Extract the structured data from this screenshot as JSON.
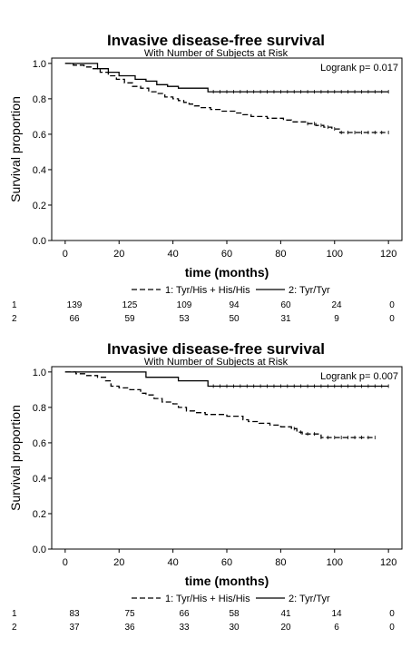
{
  "chart_data": [
    {
      "type": "line",
      "title": "Invasive disease-free survival",
      "subtitle": "With Number of Subjects at Risk",
      "xlabel": "time (months)",
      "ylabel": "Survival proportion",
      "xlim": [
        -5,
        125
      ],
      "ylim": [
        0,
        1.03
      ],
      "xticks": [
        0,
        20,
        40,
        60,
        80,
        100,
        120
      ],
      "yticks": [
        0.0,
        0.2,
        0.4,
        0.6,
        0.8,
        1.0
      ],
      "annotation": "Logrank p= 0.017",
      "legend_placement": "bottom",
      "series": [
        {
          "name": "1: Tyr/His + His/His",
          "style": "dashed",
          "x": [
            0,
            3,
            7,
            10,
            13,
            16,
            19,
            22,
            25,
            28,
            31,
            34,
            37,
            40,
            42,
            44,
            46,
            48,
            50,
            52,
            54,
            56,
            58,
            60,
            63,
            66,
            69,
            72,
            75,
            78,
            81,
            84,
            87,
            90,
            93,
            96,
            99,
            102,
            105,
            110,
            115,
            120
          ],
          "y": [
            1.0,
            0.99,
            0.98,
            0.97,
            0.95,
            0.93,
            0.91,
            0.89,
            0.87,
            0.86,
            0.84,
            0.83,
            0.81,
            0.8,
            0.79,
            0.78,
            0.77,
            0.76,
            0.75,
            0.75,
            0.74,
            0.74,
            0.73,
            0.73,
            0.72,
            0.71,
            0.7,
            0.7,
            0.69,
            0.69,
            0.68,
            0.67,
            0.67,
            0.66,
            0.65,
            0.64,
            0.63,
            0.61,
            0.61,
            0.61,
            0.61,
            0.61
          ]
        },
        {
          "name": "2: Tyr/Tyr",
          "style": "solid",
          "x": [
            0,
            10,
            12,
            16,
            20,
            26,
            30,
            34,
            38,
            42,
            46,
            50,
            53,
            60,
            70,
            80,
            90,
            100,
            110,
            120
          ],
          "y": [
            1.0,
            1.0,
            0.97,
            0.95,
            0.93,
            0.91,
            0.9,
            0.88,
            0.87,
            0.86,
            0.86,
            0.86,
            0.84,
            0.84,
            0.84,
            0.84,
            0.84,
            0.84,
            0.84,
            0.84
          ]
        }
      ],
      "risk_table": {
        "times": [
          0,
          20,
          40,
          60,
          80,
          100,
          120
        ],
        "rows": [
          {
            "label": "1",
            "counts": [
              "139",
              "125",
              "109",
              "94",
              "60",
              "24",
              "0"
            ]
          },
          {
            "label": "2",
            "counts": [
              "66",
              "59",
              "53",
              "50",
              "31",
              "9",
              "0"
            ]
          }
        ]
      }
    },
    {
      "type": "line",
      "title": "Invasive disease-free survival",
      "subtitle": "With Number of Subjects at Risk",
      "xlabel": "time (months)",
      "ylabel": "Survival proportion",
      "xlim": [
        -5,
        125
      ],
      "ylim": [
        0,
        1.03
      ],
      "xticks": [
        0,
        20,
        40,
        60,
        80,
        100,
        120
      ],
      "yticks": [
        0.0,
        0.2,
        0.4,
        0.6,
        0.8,
        1.0
      ],
      "annotation": "Logrank p= 0.007",
      "legend_placement": "bottom",
      "series": [
        {
          "name": "1: Tyr/His + His/His",
          "style": "dashed",
          "x": [
            0,
            4,
            8,
            12,
            15,
            17,
            20,
            24,
            28,
            30,
            33,
            36,
            40,
            42,
            45,
            48,
            52,
            56,
            60,
            64,
            66,
            68,
            72,
            76,
            80,
            84,
            86,
            88,
            92,
            95,
            100,
            105,
            110,
            115
          ],
          "y": [
            1.0,
            0.99,
            0.98,
            0.97,
            0.95,
            0.92,
            0.91,
            0.9,
            0.88,
            0.87,
            0.85,
            0.83,
            0.82,
            0.8,
            0.78,
            0.77,
            0.76,
            0.76,
            0.75,
            0.75,
            0.73,
            0.72,
            0.71,
            0.7,
            0.69,
            0.68,
            0.66,
            0.65,
            0.65,
            0.63,
            0.63,
            0.63,
            0.63,
            0.63
          ]
        },
        {
          "name": "2: Tyr/Tyr",
          "style": "solid",
          "x": [
            0,
            10,
            20,
            28,
            30,
            40,
            42,
            52,
            53,
            60,
            70,
            80,
            90,
            100,
            110,
            120
          ],
          "y": [
            1.0,
            1.0,
            1.0,
            1.0,
            0.97,
            0.97,
            0.95,
            0.95,
            0.92,
            0.92,
            0.92,
            0.92,
            0.92,
            0.92,
            0.92,
            0.92
          ]
        }
      ],
      "risk_table": {
        "times": [
          0,
          20,
          40,
          60,
          80,
          100,
          120
        ],
        "rows": [
          {
            "label": "1",
            "counts": [
              "83",
              "75",
              "66",
              "58",
              "41",
              "14",
              "0"
            ]
          },
          {
            "label": "2",
            "counts": [
              "37",
              "36",
              "33",
              "30",
              "20",
              "6",
              "0"
            ]
          }
        ]
      }
    }
  ]
}
